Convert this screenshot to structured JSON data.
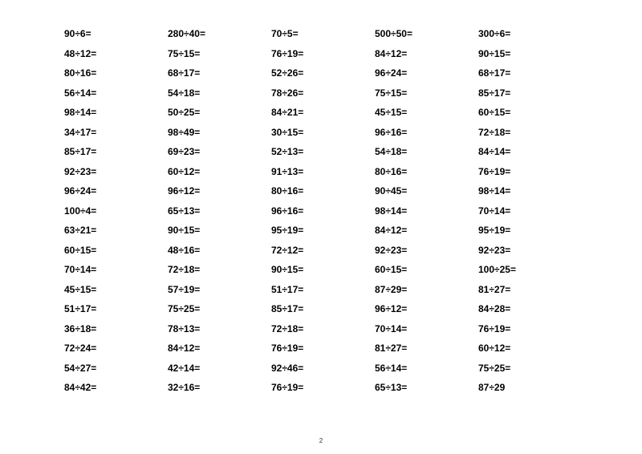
{
  "worksheet": {
    "type": "table",
    "columns": 5,
    "rows": 19,
    "problems": [
      [
        "90÷6=",
        "280÷40=",
        "70÷5=",
        "500÷50=",
        "300÷6="
      ],
      [
        "48÷12=",
        "75÷15=",
        "76÷19=",
        "84÷12=",
        "90÷15="
      ],
      [
        "80÷16=",
        "68÷17=",
        "52÷26=",
        "96÷24=",
        "68÷17="
      ],
      [
        "56÷14=",
        "54÷18=",
        "78÷26=",
        "75÷15=",
        "85÷17="
      ],
      [
        "98÷14=",
        "50÷25=",
        "84÷21=",
        "45÷15=",
        "60÷15="
      ],
      [
        "34÷17=",
        "98÷49=",
        "30÷15=",
        "96÷16=",
        "72÷18="
      ],
      [
        "85÷17=",
        "69÷23=",
        "52÷13=",
        "54÷18=",
        "84÷14="
      ],
      [
        "92÷23=",
        "60÷12=",
        "91÷13=",
        "80÷16=",
        "76÷19="
      ],
      [
        "96÷24=",
        "96÷12=",
        "80÷16=",
        "90÷45=",
        "98÷14="
      ],
      [
        "100÷4=",
        "65÷13=",
        "96÷16=",
        "98÷14=",
        "70÷14="
      ],
      [
        "63÷21=",
        "90÷15=",
        "95÷19=",
        "84÷12=",
        "95÷19="
      ],
      [
        "60÷15=",
        "48÷16=",
        "72÷12=",
        "92÷23=",
        "92÷23="
      ],
      [
        "70÷14=",
        "72÷18=",
        "90÷15=",
        "60÷15=",
        "100÷25="
      ],
      [
        "45÷15=",
        "57÷19=",
        "51÷17=",
        "87÷29=",
        "81÷27="
      ],
      [
        "51÷17=",
        "75÷25=",
        "85÷17=",
        "96÷12=",
        "84÷28="
      ],
      [
        "36÷18=",
        "78÷13=",
        "72÷18=",
        "70÷14=",
        "76÷19="
      ],
      [
        "72÷24=",
        "84÷12=",
        "76÷19=",
        "81÷27=",
        "60÷12="
      ],
      [
        "54÷27=",
        "42÷14=",
        "92÷46=",
        "56÷14=",
        "75÷25="
      ],
      [
        "84÷42=",
        "32÷16=",
        "76÷19=",
        "65÷13=",
        "87÷29"
      ]
    ],
    "font_size": 12,
    "text_color": "#000000",
    "background_color": "#ffffff"
  },
  "page_number": "2"
}
